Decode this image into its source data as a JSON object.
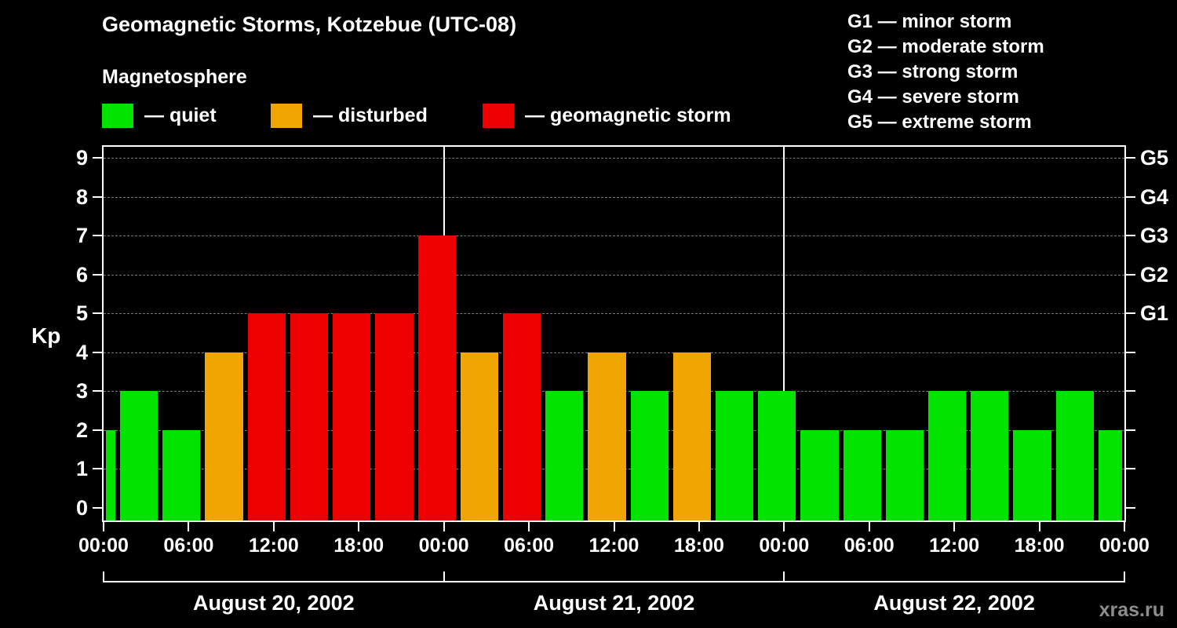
{
  "header": {
    "title": "Geomagnetic Storms, Kotzebue (UTC-08)",
    "subtitle": "Magnetosphere",
    "legend": [
      {
        "key": "quiet",
        "label": "— quiet",
        "color": "#00e400"
      },
      {
        "key": "disturbed",
        "label": "— disturbed",
        "color": "#f0a500"
      },
      {
        "key": "storm",
        "label": "— geomagnetic storm",
        "color": "#ee0000"
      }
    ],
    "g_scale": [
      "G1 — minor storm",
      "G2 — moderate storm",
      "G3 — strong storm",
      "G4 — severe storm",
      "G5 — extreme storm"
    ]
  },
  "chart_data": {
    "type": "bar",
    "title": "Geomagnetic Storms, Kotzebue (UTC-08)",
    "subtitle": "Magnetosphere",
    "ylabel": "Kp",
    "ylim": [
      0,
      9
    ],
    "y_ticks": [
      0,
      1,
      2,
      3,
      4,
      5,
      6,
      7,
      8,
      9
    ],
    "grid": "dashed horizontal line at each Kp level",
    "right_axis": [
      {
        "kp": 5,
        "label": "G1"
      },
      {
        "kp": 6,
        "label": "G2"
      },
      {
        "kp": 7,
        "label": "G3"
      },
      {
        "kp": 8,
        "label": "G4"
      },
      {
        "kp": 9,
        "label": "G5"
      }
    ],
    "total_hours": 72,
    "x_tick_step_hours": 6,
    "x_tick_labels": [
      "00:00",
      "06:00",
      "12:00",
      "18:00",
      "00:00",
      "06:00",
      "12:00",
      "18:00",
      "00:00",
      "06:00",
      "12:00",
      "18:00",
      "00:00"
    ],
    "day_boundaries_hours": [
      24,
      48
    ],
    "day_labels": [
      "August 20, 2002",
      "August 21, 2002",
      "August 22, 2002"
    ],
    "colors": {
      "quiet": "#00e400",
      "disturbed": "#f0a500",
      "storm": "#ee0000"
    },
    "bars": [
      {
        "start_hour": 0,
        "end_hour": 1,
        "kp": 2,
        "status": "quiet"
      },
      {
        "start_hour": 1,
        "end_hour": 4,
        "kp": 3,
        "status": "quiet"
      },
      {
        "start_hour": 4,
        "end_hour": 7,
        "kp": 2,
        "status": "quiet"
      },
      {
        "start_hour": 7,
        "end_hour": 10,
        "kp": 4,
        "status": "disturbed"
      },
      {
        "start_hour": 10,
        "end_hour": 13,
        "kp": 5,
        "status": "storm"
      },
      {
        "start_hour": 13,
        "end_hour": 16,
        "kp": 5,
        "status": "storm"
      },
      {
        "start_hour": 16,
        "end_hour": 19,
        "kp": 5,
        "status": "storm"
      },
      {
        "start_hour": 19,
        "end_hour": 22,
        "kp": 5,
        "status": "storm"
      },
      {
        "start_hour": 22,
        "end_hour": 25,
        "kp": 7,
        "status": "storm"
      },
      {
        "start_hour": 25,
        "end_hour": 28,
        "kp": 4,
        "status": "disturbed"
      },
      {
        "start_hour": 28,
        "end_hour": 31,
        "kp": 5,
        "status": "storm"
      },
      {
        "start_hour": 31,
        "end_hour": 34,
        "kp": 3,
        "status": "quiet"
      },
      {
        "start_hour": 34,
        "end_hour": 37,
        "kp": 4,
        "status": "disturbed"
      },
      {
        "start_hour": 37,
        "end_hour": 40,
        "kp": 3,
        "status": "quiet"
      },
      {
        "start_hour": 40,
        "end_hour": 43,
        "kp": 4,
        "status": "disturbed"
      },
      {
        "start_hour": 43,
        "end_hour": 46,
        "kp": 3,
        "status": "quiet"
      },
      {
        "start_hour": 46,
        "end_hour": 49,
        "kp": 3,
        "status": "quiet"
      },
      {
        "start_hour": 49,
        "end_hour": 52,
        "kp": 2,
        "status": "quiet"
      },
      {
        "start_hour": 52,
        "end_hour": 55,
        "kp": 2,
        "status": "quiet"
      },
      {
        "start_hour": 55,
        "end_hour": 58,
        "kp": 2,
        "status": "quiet"
      },
      {
        "start_hour": 58,
        "end_hour": 61,
        "kp": 3,
        "status": "quiet"
      },
      {
        "start_hour": 61,
        "end_hour": 64,
        "kp": 3,
        "status": "quiet"
      },
      {
        "start_hour": 64,
        "end_hour": 67,
        "kp": 2,
        "status": "quiet"
      },
      {
        "start_hour": 67,
        "end_hour": 70,
        "kp": 3,
        "status": "quiet"
      },
      {
        "start_hour": 70,
        "end_hour": 72,
        "kp": 2,
        "status": "quiet"
      }
    ]
  },
  "watermark": "xras.ru"
}
